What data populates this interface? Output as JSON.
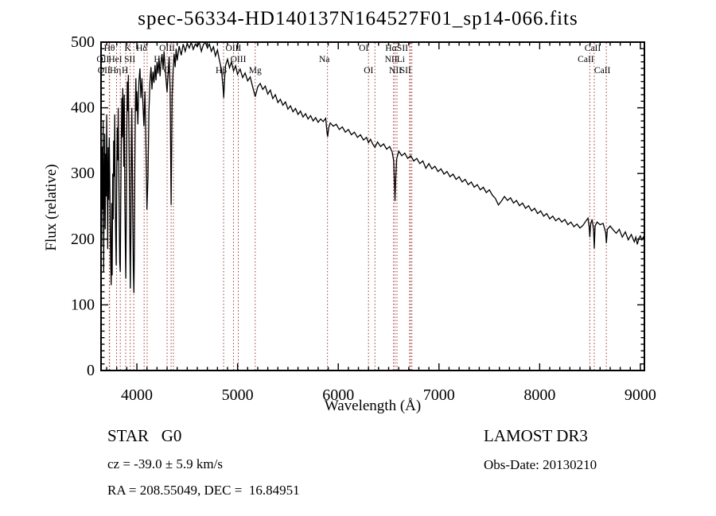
{
  "meta": {
    "window_title": "spec-56334-HD140137N164527F01_sp14-066.fits"
  },
  "annotations": {
    "class_label": "STAR   G0",
    "survey": "LAMOST DR3",
    "cz": "cz = -39.0 ± 5.9 km/s",
    "obs_date": "Obs-Date: 20130210",
    "ra_dec": "RA = 208.55049, DEC =  16.84951"
  },
  "chart_data": {
    "type": "line",
    "title": "spec-56334-HD140137N164527F01_sp14-066.fits",
    "xlabel": "Wavelength (Å)",
    "ylabel": "Flux (relative)",
    "xlim": [
      3644,
      9040
    ],
    "ylim": [
      0,
      500
    ],
    "xticks": [
      4000,
      5000,
      6000,
      7000,
      8000,
      9000
    ],
    "yticks": [
      0,
      100,
      200,
      300,
      400,
      500
    ],
    "x_minor_step": 100,
    "y_minor_step": 10,
    "grid": false,
    "legend": "none",
    "axis_color": "#000000",
    "spectrum_color": "#000000",
    "line_marker_color": "#9e3434",
    "spectral_lines": [
      {
        "wl": 3726,
        "label": "OII",
        "row": 2,
        "dx": -8
      },
      {
        "wl": 3729,
        "label": "OII",
        "row": 3,
        "dx": -7
      },
      {
        "wl": 3798,
        "label": "Hθ",
        "row": 1,
        "dx": -9
      },
      {
        "wl": 3835,
        "label": "Hη",
        "row": 3,
        "dx": -6
      },
      {
        "wl": 3889,
        "label": "HeI",
        "row": 2,
        "dx": -13
      },
      {
        "wl": 3934,
        "label": "K",
        "row": 1,
        "dx": -3
      },
      {
        "wl": 3969,
        "label": "H",
        "row": 3,
        "dx": -11
      },
      {
        "wl": 4072,
        "label": "SII",
        "row": 2,
        "dx": -18
      },
      {
        "wl": 4102,
        "label": "Hδ",
        "row": 1,
        "dx": -7
      },
      {
        "wl": 4300,
        "label": "G",
        "row": 3,
        "dx": 0
      },
      {
        "wl": 4340,
        "label": "Hγ",
        "row": 2,
        "dx": -15
      },
      {
        "wl": 4363,
        "label": "OIII",
        "row": 1,
        "dx": -8
      },
      {
        "wl": 4861,
        "label": "Hβ",
        "row": 3,
        "dx": -3
      },
      {
        "wl": 4959,
        "label": "OIII",
        "row": 1,
        "dx": 0
      },
      {
        "wl": 5007,
        "label": "OIII",
        "row": 2,
        "dx": 0
      },
      {
        "wl": 5175,
        "label": "Mg",
        "row": 3,
        "dx": 0
      },
      {
        "wl": 5893,
        "label": "Na",
        "row": 2,
        "dx": -4
      },
      {
        "wl": 6300,
        "label": "OI",
        "row": 1,
        "dx": -6
      },
      {
        "wl": 6364,
        "label": "OI",
        "row": 3,
        "dx": -8
      },
      {
        "wl": 6548,
        "label": "NII",
        "row": 2,
        "dx": -3
      },
      {
        "wl": 6563,
        "label": "Hα",
        "row": 1,
        "dx": -5
      },
      {
        "wl": 6583,
        "label": "NII",
        "row": 3,
        "dx": -2
      },
      {
        "wl": 6708,
        "label": "Li",
        "row": 2,
        "dx": -11
      },
      {
        "wl": 6717,
        "label": "SII",
        "row": 1,
        "dx": -10
      },
      {
        "wl": 6731,
        "label": "SII",
        "row": 3,
        "dx": -8
      },
      {
        "wl": 8498,
        "label": "CaII",
        "row": 2,
        "dx": -5
      },
      {
        "wl": 8542,
        "label": "CaII",
        "row": 1,
        "dx": -2
      },
      {
        "wl": 8662,
        "label": "CaII",
        "row": 3,
        "dx": -5
      }
    ],
    "points": [
      [
        3645,
        285
      ],
      [
        3650,
        190
      ],
      [
        3655,
        340
      ],
      [
        3660,
        245
      ],
      [
        3665,
        380
      ],
      [
        3670,
        150
      ],
      [
        3675,
        280
      ],
      [
        3680,
        360
      ],
      [
        3685,
        215
      ],
      [
        3690,
        330
      ],
      [
        3695,
        265
      ],
      [
        3700,
        390
      ],
      [
        3705,
        300
      ],
      [
        3710,
        185
      ],
      [
        3715,
        340
      ],
      [
        3720,
        260
      ],
      [
        3725,
        355
      ],
      [
        3730,
        300
      ],
      [
        3735,
        225
      ],
      [
        3740,
        160
      ],
      [
        3745,
        130
      ],
      [
        3750,
        255
      ],
      [
        3755,
        145
      ],
      [
        3760,
        300
      ],
      [
        3765,
        230
      ],
      [
        3770,
        350
      ],
      [
        3775,
        295
      ],
      [
        3780,
        390
      ],
      [
        3785,
        265
      ],
      [
        3790,
        200
      ],
      [
        3795,
        160
      ],
      [
        3800,
        290
      ],
      [
        3805,
        370
      ],
      [
        3810,
        320
      ],
      [
        3815,
        400
      ],
      [
        3820,
        305
      ],
      [
        3825,
        230
      ],
      [
        3830,
        165
      ],
      [
        3835,
        150
      ],
      [
        3840,
        260
      ],
      [
        3845,
        340
      ],
      [
        3850,
        415
      ],
      [
        3855,
        355
      ],
      [
        3860,
        430
      ],
      [
        3865,
        385
      ],
      [
        3870,
        310
      ],
      [
        3875,
        420
      ],
      [
        3880,
        265
      ],
      [
        3885,
        195
      ],
      [
        3890,
        140
      ],
      [
        3895,
        235
      ],
      [
        3900,
        365
      ],
      [
        3905,
        440
      ],
      [
        3910,
        395
      ],
      [
        3915,
        450
      ],
      [
        3920,
        375
      ],
      [
        3925,
        295
      ],
      [
        3930,
        200
      ],
      [
        3935,
        125
      ],
      [
        3940,
        205
      ],
      [
        3945,
        335
      ],
      [
        3950,
        400
      ],
      [
        3955,
        305
      ],
      [
        3960,
        225
      ],
      [
        3965,
        155
      ],
      [
        3970,
        118
      ],
      [
        3975,
        185
      ],
      [
        3980,
        315
      ],
      [
        3985,
        405
      ],
      [
        3990,
        445
      ],
      [
        3995,
        395
      ],
      [
        4000,
        425
      ],
      [
        4010,
        375
      ],
      [
        4020,
        440
      ],
      [
        4030,
        460
      ],
      [
        4040,
        415
      ],
      [
        4050,
        445
      ],
      [
        4060,
        405
      ],
      [
        4070,
        372
      ],
      [
        4080,
        425
      ],
      [
        4090,
        335
      ],
      [
        4100,
        245
      ],
      [
        4110,
        295
      ],
      [
        4120,
        395
      ],
      [
        4130,
        440
      ],
      [
        4140,
        462
      ],
      [
        4150,
        428
      ],
      [
        4160,
        455
      ],
      [
        4170,
        438
      ],
      [
        4180,
        465
      ],
      [
        4190,
        442
      ],
      [
        4200,
        470
      ],
      [
        4210,
        452
      ],
      [
        4220,
        476
      ],
      [
        4230,
        448
      ],
      [
        4240,
        470
      ],
      [
        4250,
        482
      ],
      [
        4260,
        458
      ],
      [
        4270,
        486
      ],
      [
        4280,
        462
      ],
      [
        4290,
        442
      ],
      [
        4300,
        424
      ],
      [
        4310,
        452
      ],
      [
        4320,
        478
      ],
      [
        4330,
        430
      ],
      [
        4340,
        252
      ],
      [
        4350,
        420
      ],
      [
        4360,
        458
      ],
      [
        4370,
        482
      ],
      [
        4380,
        462
      ],
      [
        4390,
        490
      ],
      [
        4400,
        472
      ],
      [
        4420,
        494
      ],
      [
        4440,
        480
      ],
      [
        4460,
        497
      ],
      [
        4480,
        486
      ],
      [
        4500,
        498
      ],
      [
        4520,
        491
      ],
      [
        4540,
        500
      ],
      [
        4560,
        489
      ],
      [
        4580,
        497
      ],
      [
        4600,
        493
      ],
      [
        4620,
        500
      ],
      [
        4640,
        486
      ],
      [
        4660,
        496
      ],
      [
        4680,
        500
      ],
      [
        4700,
        491
      ],
      [
        4720,
        497
      ],
      [
        4740,
        486
      ],
      [
        4760,
        493
      ],
      [
        4780,
        479
      ],
      [
        4800,
        488
      ],
      [
        4820,
        472
      ],
      [
        4840,
        458
      ],
      [
        4855,
        432
      ],
      [
        4862,
        415
      ],
      [
        4870,
        442
      ],
      [
        4880,
        464
      ],
      [
        4900,
        474
      ],
      [
        4920,
        461
      ],
      [
        4940,
        470
      ],
      [
        4960,
        456
      ],
      [
        4980,
        464
      ],
      [
        5000,
        451
      ],
      [
        5025,
        459
      ],
      [
        5050,
        446
      ],
      [
        5075,
        453
      ],
      [
        5100,
        441
      ],
      [
        5125,
        447
      ],
      [
        5150,
        432
      ],
      [
        5175,
        417
      ],
      [
        5200,
        432
      ],
      [
        5225,
        437
      ],
      [
        5250,
        428
      ],
      [
        5275,
        433
      ],
      [
        5300,
        421
      ],
      [
        5325,
        427
      ],
      [
        5350,
        414
      ],
      [
        5375,
        420
      ],
      [
        5400,
        408
      ],
      [
        5425,
        413
      ],
      [
        5450,
        404
      ],
      [
        5475,
        409
      ],
      [
        5500,
        398
      ],
      [
        5525,
        403
      ],
      [
        5550,
        394
      ],
      [
        5575,
        399
      ],
      [
        5600,
        390
      ],
      [
        5625,
        395
      ],
      [
        5650,
        386
      ],
      [
        5675,
        391
      ],
      [
        5700,
        383
      ],
      [
        5725,
        388
      ],
      [
        5750,
        380
      ],
      [
        5775,
        385
      ],
      [
        5800,
        378
      ],
      [
        5825,
        383
      ],
      [
        5850,
        379
      ],
      [
        5875,
        384
      ],
      [
        5890,
        360
      ],
      [
        5895,
        356
      ],
      [
        5905,
        370
      ],
      [
        5920,
        377
      ],
      [
        5950,
        372
      ],
      [
        5980,
        375
      ],
      [
        6010,
        367
      ],
      [
        6040,
        371
      ],
      [
        6070,
        363
      ],
      [
        6100,
        367
      ],
      [
        6130,
        359
      ],
      [
        6160,
        363
      ],
      [
        6190,
        355
      ],
      [
        6220,
        359
      ],
      [
        6250,
        351
      ],
      [
        6280,
        355
      ],
      [
        6300,
        347
      ],
      [
        6320,
        352
      ],
      [
        6345,
        344
      ],
      [
        6364,
        340
      ],
      [
        6390,
        348
      ],
      [
        6420,
        341
      ],
      [
        6450,
        345
      ],
      [
        6480,
        337
      ],
      [
        6510,
        341
      ],
      [
        6535,
        333
      ],
      [
        6550,
        320
      ],
      [
        6558,
        285
      ],
      [
        6563,
        258
      ],
      [
        6570,
        292
      ],
      [
        6580,
        322
      ],
      [
        6600,
        334
      ],
      [
        6630,
        327
      ],
      [
        6660,
        331
      ],
      [
        6690,
        323
      ],
      [
        6720,
        327
      ],
      [
        6750,
        319
      ],
      [
        6780,
        323
      ],
      [
        6810,
        315
      ],
      [
        6840,
        319
      ],
      [
        6870,
        308
      ],
      [
        6900,
        315
      ],
      [
        6930,
        307
      ],
      [
        6960,
        311
      ],
      [
        6990,
        303
      ],
      [
        7020,
        307
      ],
      [
        7050,
        299
      ],
      [
        7080,
        303
      ],
      [
        7110,
        295
      ],
      [
        7140,
        299
      ],
      [
        7170,
        291
      ],
      [
        7200,
        295
      ],
      [
        7230,
        287
      ],
      [
        7260,
        291
      ],
      [
        7290,
        283
      ],
      [
        7320,
        287
      ],
      [
        7350,
        279
      ],
      [
        7380,
        283
      ],
      [
        7410,
        275
      ],
      [
        7440,
        279
      ],
      [
        7470,
        271
      ],
      [
        7500,
        275
      ],
      [
        7530,
        267
      ],
      [
        7560,
        262
      ],
      [
        7590,
        252
      ],
      [
        7620,
        258
      ],
      [
        7650,
        265
      ],
      [
        7680,
        259
      ],
      [
        7710,
        263
      ],
      [
        7740,
        255
      ],
      [
        7770,
        259
      ],
      [
        7800,
        251
      ],
      [
        7830,
        255
      ],
      [
        7860,
        247
      ],
      [
        7890,
        251
      ],
      [
        7920,
        243
      ],
      [
        7950,
        247
      ],
      [
        7980,
        239
      ],
      [
        8010,
        243
      ],
      [
        8040,
        235
      ],
      [
        8070,
        239
      ],
      [
        8100,
        231
      ],
      [
        8130,
        235
      ],
      [
        8160,
        228
      ],
      [
        8190,
        232
      ],
      [
        8220,
        226
      ],
      [
        8250,
        230
      ],
      [
        8280,
        222
      ],
      [
        8310,
        226
      ],
      [
        8340,
        219
      ],
      [
        8370,
        223
      ],
      [
        8400,
        217
      ],
      [
        8430,
        221
      ],
      [
        8460,
        228
      ],
      [
        8480,
        232
      ],
      [
        8492,
        218
      ],
      [
        8498,
        203
      ],
      [
        8505,
        222
      ],
      [
        8520,
        230
      ],
      [
        8535,
        215
      ],
      [
        8542,
        186
      ],
      [
        8550,
        220
      ],
      [
        8570,
        226
      ],
      [
        8600,
        222
      ],
      [
        8630,
        224
      ],
      [
        8655,
        210
      ],
      [
        8662,
        194
      ],
      [
        8672,
        215
      ],
      [
        8700,
        220
      ],
      [
        8730,
        214
      ],
      [
        8760,
        209
      ],
      [
        8790,
        215
      ],
      [
        8820,
        203
      ],
      [
        8850,
        211
      ],
      [
        8880,
        199
      ],
      [
        8910,
        207
      ],
      [
        8940,
        196
      ],
      [
        8955,
        203
      ],
      [
        8970,
        192
      ],
      [
        8985,
        201
      ],
      [
        9000,
        205
      ],
      [
        9015,
        199
      ],
      [
        9030,
        203
      ],
      [
        9040,
        198
      ],
      [
        9045,
        160
      ],
      [
        9048,
        140
      ]
    ]
  }
}
